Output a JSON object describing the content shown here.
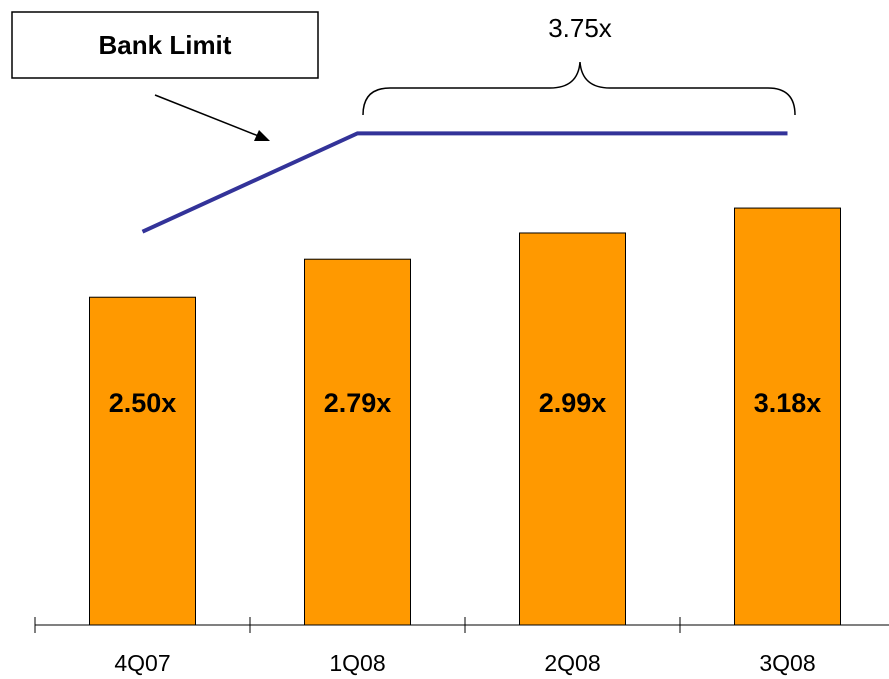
{
  "chart_data": {
    "type": "bar",
    "categories": [
      "4Q07",
      "1Q08",
      "2Q08",
      "3Q08"
    ],
    "series": [
      {
        "type": "bar",
        "color": "#ff9900",
        "values": [
          2.5,
          2.79,
          2.99,
          3.18
        ],
        "value_labels": [
          "2.50x",
          "2.79x",
          "2.99x",
          "3.18x"
        ]
      },
      {
        "type": "line",
        "name": "Bank Limit",
        "color": "#333399",
        "values": [
          3.0,
          3.75,
          3.75,
          3.75
        ]
      }
    ],
    "annotation": "3.75x",
    "ylim": [
      0,
      4.5
    ]
  }
}
